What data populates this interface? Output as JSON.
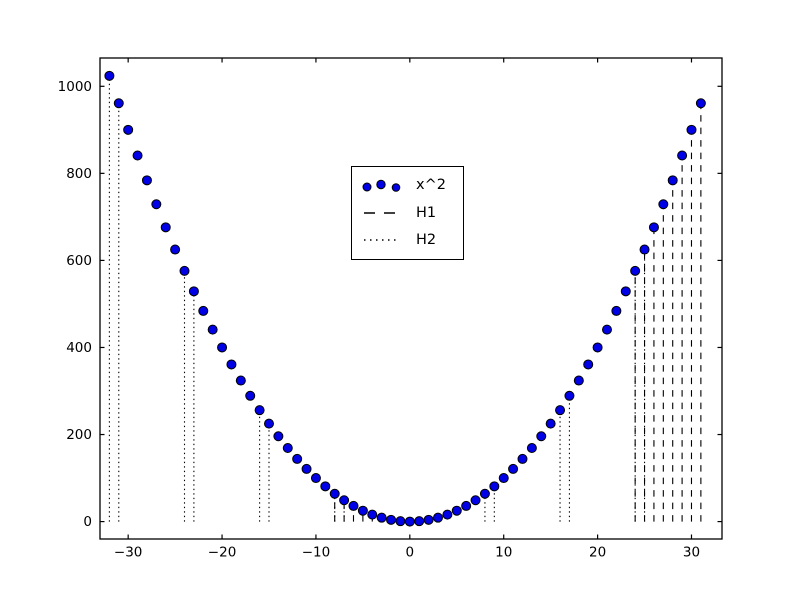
{
  "chart_data": {
    "type": "scatter",
    "title": "",
    "xlabel": "",
    "ylabel": "",
    "xlim": [
      -33.0,
      33.25
    ],
    "ylim": [
      -40,
      1065
    ],
    "grid": false,
    "frame_color": "#000000",
    "background_color": "#ffffff",
    "xticks": {
      "values": [
        -30,
        -20,
        -10,
        0,
        10,
        20,
        30
      ],
      "labels": [
        "−30",
        "−20",
        "−10",
        "0",
        "10",
        "20",
        "30"
      ]
    },
    "yticks": {
      "values": [
        0,
        200,
        400,
        600,
        800,
        1000
      ],
      "labels": [
        "0",
        "200",
        "400",
        "600",
        "800",
        "1000"
      ]
    },
    "legend": {
      "position": "upper-center-left",
      "entries": [
        {
          "label": "x^2",
          "glyph": "scatter-dots",
          "color": "#0000e6"
        },
        {
          "label": "H1",
          "glyph": "dashed-line",
          "color": "#000000"
        },
        {
          "label": "H2",
          "glyph": "dotted-line",
          "color": "#000000"
        }
      ]
    },
    "series": [
      {
        "name": "x^2",
        "type": "scatter",
        "marker": "circle",
        "marker_color": "#0000e6",
        "marker_edge_color": "#000000",
        "x": [
          -32,
          -31,
          -30,
          -29,
          -28,
          -27,
          -26,
          -25,
          -24,
          -23,
          -22,
          -21,
          -20,
          -19,
          -18,
          -17,
          -16,
          -15,
          -14,
          -13,
          -12,
          -11,
          -10,
          -9,
          -8,
          -7,
          -6,
          -5,
          -4,
          -3,
          -2,
          -1,
          0,
          1,
          2,
          3,
          4,
          5,
          6,
          7,
          8,
          9,
          10,
          11,
          12,
          13,
          14,
          15,
          16,
          17,
          18,
          19,
          20,
          21,
          22,
          23,
          24,
          25,
          26,
          27,
          28,
          29,
          30,
          31
        ],
        "y": [
          1024,
          961,
          900,
          841,
          784,
          729,
          676,
          625,
          576,
          529,
          484,
          441,
          400,
          361,
          324,
          289,
          256,
          225,
          196,
          169,
          144,
          121,
          100,
          81,
          64,
          49,
          36,
          25,
          16,
          9,
          4,
          1,
          0,
          1,
          4,
          9,
          16,
          25,
          36,
          49,
          64,
          81,
          100,
          121,
          144,
          169,
          196,
          225,
          256,
          289,
          324,
          361,
          400,
          441,
          484,
          529,
          576,
          625,
          676,
          729,
          784,
          841,
          900,
          961
        ]
      },
      {
        "name": "H1",
        "type": "vlines",
        "linestyle": "dashed",
        "color": "#000000",
        "ymin": 0,
        "x": [
          -8,
          -7,
          -6,
          -5,
          -4,
          -3,
          -2,
          -1,
          24,
          25,
          26,
          27,
          28,
          29,
          30,
          31
        ],
        "ymax": [
          64,
          49,
          36,
          25,
          16,
          9,
          4,
          1,
          576,
          625,
          676,
          729,
          784,
          841,
          900,
          961
        ]
      },
      {
        "name": "H2",
        "type": "vlines",
        "linestyle": "dotted",
        "color": "#000000",
        "ymin": 0,
        "x": [
          -32,
          -31,
          -24,
          -23,
          -16,
          -15,
          -8,
          -7,
          0,
          1,
          8,
          9,
          16,
          17,
          24,
          25
        ],
        "ymax": [
          1024,
          961,
          576,
          529,
          256,
          225,
          64,
          49,
          0,
          1,
          64,
          81,
          256,
          289,
          576,
          625
        ]
      }
    ]
  }
}
